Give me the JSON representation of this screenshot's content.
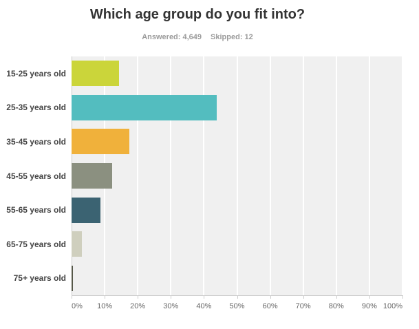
{
  "header": {
    "title": "Which age group do you fit into?",
    "answered": "Answered: 4,649",
    "skipped": "Skipped: 12"
  },
  "chart_data": {
    "type": "bar",
    "orientation": "horizontal",
    "title": "Which age group do you fit into?",
    "answered_count": "4,649",
    "skipped_count": "12",
    "categories": [
      "15-25 years old",
      "25-35 years old",
      "35-45 years old",
      "45-55 years old",
      "55-65 years old",
      "65-75 years old",
      "75+ years old"
    ],
    "values": [
      14.4,
      43.8,
      17.4,
      12.2,
      8.8,
      3.2,
      0.4
    ],
    "bar_colors": [
      "#cbd53a",
      "#53bdbf",
      "#f0b13b",
      "#8b9080",
      "#3b6372",
      "#cfcfbe",
      "#565849"
    ],
    "x_tick_labels": [
      "0%",
      "10%",
      "20%",
      "30%",
      "40%",
      "50%",
      "60%",
      "70%",
      "80%",
      "90%",
      "100%"
    ],
    "xlim": [
      0,
      100
    ],
    "xlabel": "",
    "ylabel": "",
    "grid": true,
    "legend": "none",
    "plot_background": "#f0f0f0",
    "gridline_color": "#ffffff",
    "axis_line_color": "#cccccc"
  }
}
